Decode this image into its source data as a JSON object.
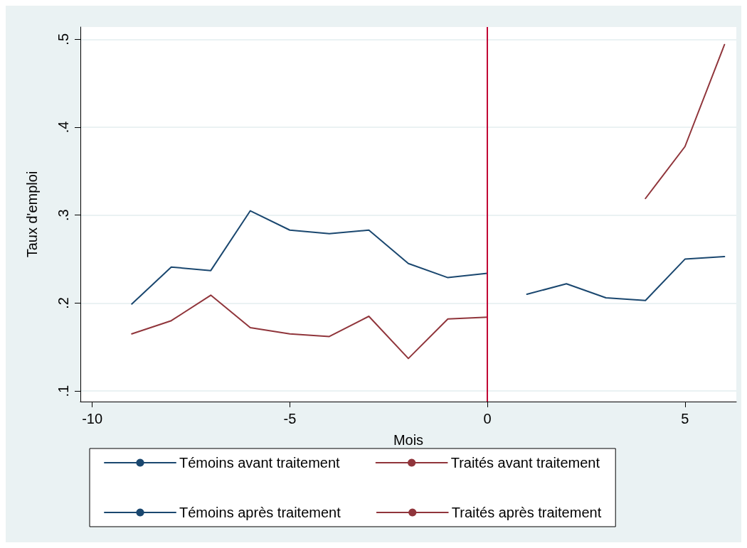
{
  "chart_data": {
    "type": "line",
    "xlabel": "Mois",
    "ylabel": "Taux d'emploi",
    "xlim": [
      -10.3,
      6.3
    ],
    "xticks": [
      -10,
      -5,
      0,
      5
    ],
    "ylim": [
      0.088,
      0.514
    ],
    "yticks": [
      {
        "value": 0.1,
        "label": ".1"
      },
      {
        "value": 0.2,
        "label": ".2"
      },
      {
        "value": 0.3,
        "label": ".3"
      },
      {
        "value": 0.4,
        "label": ".4"
      },
      {
        "value": 0.5,
        "label": ".5"
      }
    ],
    "series": [
      {
        "name": "Témoins avant traitement",
        "color": "#1a476f",
        "x": [
          -9,
          -8,
          -7,
          -6,
          -5,
          -4,
          -3,
          -2,
          -1,
          0
        ],
        "values": [
          0.199,
          0.241,
          0.237,
          0.305,
          0.283,
          0.279,
          0.283,
          0.245,
          0.229,
          0.234
        ]
      },
      {
        "name": "Traités avant traitement",
        "color": "#90353b",
        "x": [
          -9,
          -8,
          -7,
          -6,
          -5,
          -4,
          -3,
          -2,
          -1,
          0
        ],
        "values": [
          0.165,
          0.18,
          0.209,
          0.172,
          0.165,
          0.162,
          0.185,
          0.137,
          0.182,
          0.184
        ]
      },
      {
        "name": "Témoins après traitement",
        "color": "#1a476f",
        "x": [
          1,
          2,
          3,
          4,
          5,
          6
        ],
        "values": [
          0.21,
          0.222,
          0.206,
          0.203,
          0.25,
          0.253
        ]
      },
      {
        "name": "Traités après traitement",
        "color": "#90353b",
        "x": [
          4,
          5,
          6
        ],
        "values": [
          0.319,
          0.378,
          0.494
        ]
      }
    ],
    "ref_lines": [
      {
        "axis": "x",
        "value": 0,
        "color": "#c10534"
      }
    ],
    "grid": "y",
    "legend": "bottom",
    "marker": "none",
    "line_style": "solid"
  }
}
